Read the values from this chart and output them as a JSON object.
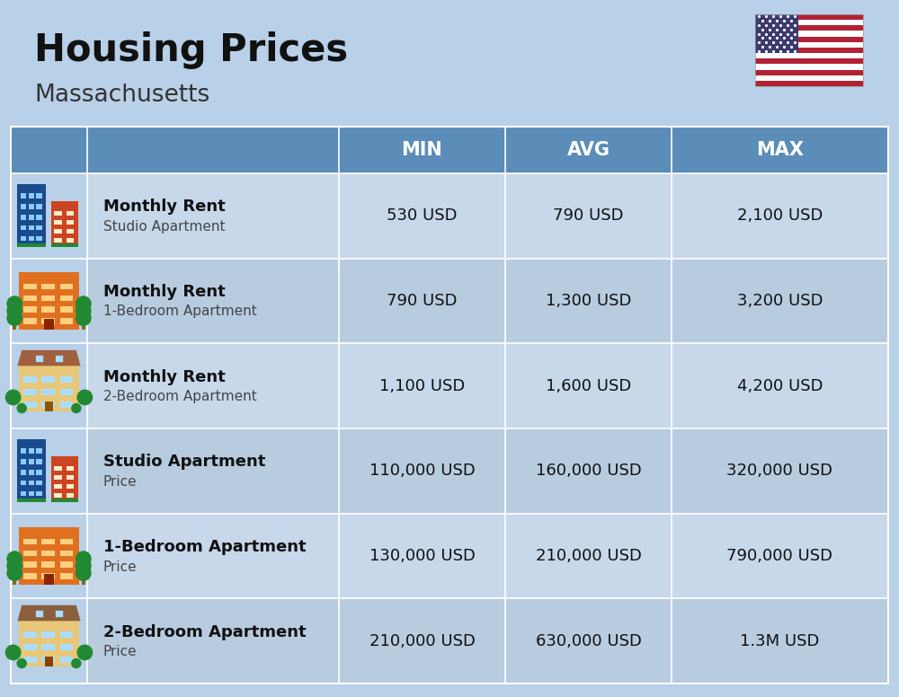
{
  "title": "Housing Prices",
  "subtitle": "Massachusetts",
  "bg_color": "#b8d0e8",
  "header_bg_color": "#5b8db8",
  "header_text_color": "#ffffff",
  "row_colors": [
    "#c8d8eb",
    "#b8cce0",
    "#c8d8eb",
    "#b8cce0",
    "#c8d8eb",
    "#b8cce0"
  ],
  "icon_col_color": "#b8d0e8",
  "col_headers": [
    "MIN",
    "AVG",
    "MAX"
  ],
  "rows": [
    {
      "bold_label": "Monthly Rent",
      "sub_label": "Studio Apartment",
      "min": "530 USD",
      "avg": "790 USD",
      "max": "2,100 USD",
      "icon_type": "studio_blue_red"
    },
    {
      "bold_label": "Monthly Rent",
      "sub_label": "1-Bedroom Apartment",
      "min": "790 USD",
      "avg": "1,300 USD",
      "max": "3,200 USD",
      "icon_type": "one_bed_orange"
    },
    {
      "bold_label": "Monthly Rent",
      "sub_label": "2-Bedroom Apartment",
      "min": "1,100 USD",
      "avg": "1,600 USD",
      "max": "4,200 USD",
      "icon_type": "two_bed_beige"
    },
    {
      "bold_label": "Studio Apartment",
      "sub_label": "Price",
      "min": "110,000 USD",
      "avg": "160,000 USD",
      "max": "320,000 USD",
      "icon_type": "studio_blue_red"
    },
    {
      "bold_label": "1-Bedroom Apartment",
      "sub_label": "Price",
      "min": "130,000 USD",
      "avg": "210,000 USD",
      "max": "790,000 USD",
      "icon_type": "one_bed_orange"
    },
    {
      "bold_label": "2-Bedroom Apartment",
      "sub_label": "Price",
      "min": "210,000 USD",
      "avg": "630,000 USD",
      "max": "1.3M USD",
      "icon_type": "two_bed_brown"
    }
  ],
  "title_fontsize": 30,
  "subtitle_fontsize": 19,
  "header_fontsize": 15,
  "label_bold_fontsize": 13,
  "label_sub_fontsize": 11,
  "value_fontsize": 13
}
